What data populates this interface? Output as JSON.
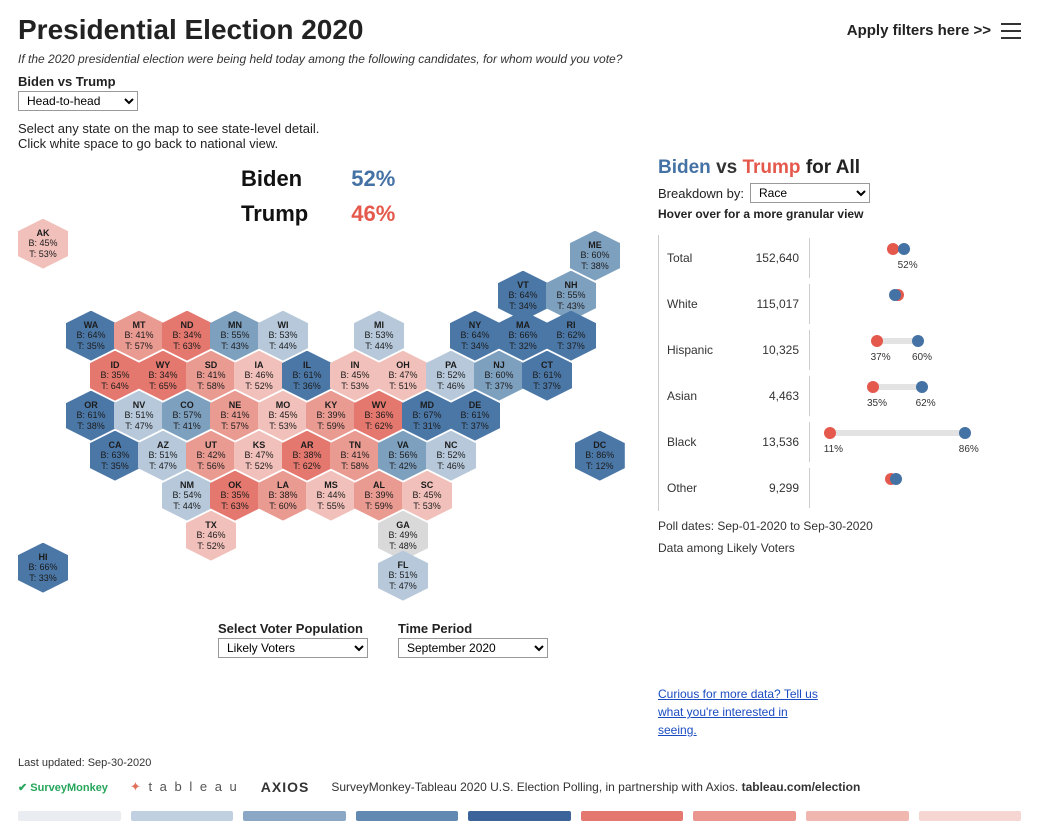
{
  "header": {
    "title": "Presidential Election 2020",
    "filters_link": "Apply filters here >>",
    "subtitle": "If the 2020 presidential election were being held today among the following candidates, for whom would you vote?",
    "matchup_label": "Biden vs Trump",
    "matchup_value": "Head-to-head",
    "instructions_l1": "Select any state on the map to see state-level detail.",
    "instructions_l2": "Click white space to go back to national view."
  },
  "headline": {
    "biden_name": "Biden",
    "biden_pct": "52%",
    "trump_name": "Trump",
    "trump_pct": "46%",
    "biden_color": "#4472a4",
    "trump_color": "#e4594c"
  },
  "hex_colors": {
    "b_high": "#4b77a6",
    "b_mid": "#7ea0bf",
    "b_low": "#b6c8da",
    "neutral": "#d9d9d9",
    "t_low": "#f1c0ba",
    "t_mid": "#e99a91",
    "t_high": "#e4776e"
  },
  "states": [
    {
      "id": "AK",
      "b": 45,
      "t": 53,
      "col": 0,
      "row": 0.2,
      "shade": "t_low"
    },
    {
      "id": "HI",
      "b": 66,
      "t": 33,
      "col": 0,
      "row": 8.3,
      "shade": "b_high"
    },
    {
      "id": "ME",
      "b": 60,
      "t": 38,
      "col": 11.5,
      "row": 0.5,
      "shade": "b_mid"
    },
    {
      "id": "VT",
      "b": 64,
      "t": 34,
      "col": 10,
      "row": 1.5,
      "shade": "b_high"
    },
    {
      "id": "NH",
      "b": 55,
      "t": 43,
      "col": 11,
      "row": 1.5,
      "shade": "b_mid"
    },
    {
      "id": "WA",
      "b": 64,
      "t": 35,
      "col": 1,
      "row": 2.5,
      "shade": "b_high"
    },
    {
      "id": "MT",
      "b": 41,
      "t": 57,
      "col": 2,
      "row": 2.5,
      "shade": "t_mid"
    },
    {
      "id": "ND",
      "b": 34,
      "t": 63,
      "col": 3,
      "row": 2.5,
      "shade": "t_high"
    },
    {
      "id": "MN",
      "b": 55,
      "t": 43,
      "col": 4,
      "row": 2.5,
      "shade": "b_mid"
    },
    {
      "id": "WI",
      "b": 53,
      "t": 44,
      "col": 5,
      "row": 2.5,
      "shade": "b_low"
    },
    {
      "id": "MI",
      "b": 53,
      "t": 44,
      "col": 7,
      "row": 2.5,
      "shade": "b_low"
    },
    {
      "id": "NY",
      "b": 64,
      "t": 34,
      "col": 9,
      "row": 2.5,
      "shade": "b_high"
    },
    {
      "id": "MA",
      "b": 66,
      "t": 32,
      "col": 10,
      "row": 2.5,
      "shade": "b_high"
    },
    {
      "id": "RI",
      "b": 62,
      "t": 37,
      "col": 11,
      "row": 2.5,
      "shade": "b_high"
    },
    {
      "id": "ID",
      "b": 35,
      "t": 64,
      "col": 1.5,
      "row": 3.5,
      "shade": "t_high"
    },
    {
      "id": "WY",
      "b": 34,
      "t": 65,
      "col": 2.5,
      "row": 3.5,
      "shade": "t_high"
    },
    {
      "id": "SD",
      "b": 41,
      "t": 58,
      "col": 3.5,
      "row": 3.5,
      "shade": "t_mid"
    },
    {
      "id": "IA",
      "b": 46,
      "t": 52,
      "col": 4.5,
      "row": 3.5,
      "shade": "t_low"
    },
    {
      "id": "IL",
      "b": 61,
      "t": 36,
      "col": 5.5,
      "row": 3.5,
      "shade": "b_high"
    },
    {
      "id": "IN",
      "b": 45,
      "t": 53,
      "col": 6.5,
      "row": 3.5,
      "shade": "t_low"
    },
    {
      "id": "OH",
      "b": 47,
      "t": 51,
      "col": 7.5,
      "row": 3.5,
      "shade": "t_low"
    },
    {
      "id": "PA",
      "b": 52,
      "t": 46,
      "col": 8.5,
      "row": 3.5,
      "shade": "b_low"
    },
    {
      "id": "NJ",
      "b": 60,
      "t": 37,
      "col": 9.5,
      "row": 3.5,
      "shade": "b_mid"
    },
    {
      "id": "CT",
      "b": 61,
      "t": 37,
      "col": 10.5,
      "row": 3.5,
      "shade": "b_high"
    },
    {
      "id": "OR",
      "b": 61,
      "t": 38,
      "col": 1,
      "row": 4.5,
      "shade": "b_high"
    },
    {
      "id": "NV",
      "b": 51,
      "t": 47,
      "col": 2,
      "row": 4.5,
      "shade": "b_low"
    },
    {
      "id": "CO",
      "b": 57,
      "t": 41,
      "col": 3,
      "row": 4.5,
      "shade": "b_mid"
    },
    {
      "id": "NE",
      "b": 41,
      "t": 57,
      "col": 4,
      "row": 4.5,
      "shade": "t_mid"
    },
    {
      "id": "MO",
      "b": 45,
      "t": 53,
      "col": 5,
      "row": 4.5,
      "shade": "t_low"
    },
    {
      "id": "KY",
      "b": 39,
      "t": 59,
      "col": 6,
      "row": 4.5,
      "shade": "t_mid"
    },
    {
      "id": "WV",
      "b": 36,
      "t": 62,
      "col": 7,
      "row": 4.5,
      "shade": "t_high"
    },
    {
      "id": "MD",
      "b": 67,
      "t": 31,
      "col": 8,
      "row": 4.5,
      "shade": "b_high"
    },
    {
      "id": "DE",
      "b": 61,
      "t": 37,
      "col": 9,
      "row": 4.5,
      "shade": "b_high"
    },
    {
      "id": "CA",
      "b": 63,
      "t": 35,
      "col": 1.5,
      "row": 5.5,
      "shade": "b_high"
    },
    {
      "id": "AZ",
      "b": 51,
      "t": 47,
      "col": 2.5,
      "row": 5.5,
      "shade": "b_low"
    },
    {
      "id": "UT",
      "b": 42,
      "t": 56,
      "col": 3.5,
      "row": 5.5,
      "shade": "t_mid"
    },
    {
      "id": "KS",
      "b": 47,
      "t": 52,
      "col": 4.5,
      "row": 5.5,
      "shade": "t_low"
    },
    {
      "id": "AR",
      "b": 38,
      "t": 62,
      "col": 5.5,
      "row": 5.5,
      "shade": "t_high"
    },
    {
      "id": "TN",
      "b": 41,
      "t": 58,
      "col": 6.5,
      "row": 5.5,
      "shade": "t_mid"
    },
    {
      "id": "VA",
      "b": 56,
      "t": 42,
      "col": 7.5,
      "row": 5.5,
      "shade": "b_mid"
    },
    {
      "id": "NC",
      "b": 52,
      "t": 46,
      "col": 8.5,
      "row": 5.5,
      "shade": "b_low"
    },
    {
      "id": "DC",
      "b": 86,
      "t": 12,
      "col": 11.6,
      "row": 5.5,
      "shade": "b_high"
    },
    {
      "id": "NM",
      "b": 54,
      "t": 44,
      "col": 3,
      "row": 6.5,
      "shade": "b_low"
    },
    {
      "id": "OK",
      "b": 35,
      "t": 63,
      "col": 4,
      "row": 6.5,
      "shade": "t_high"
    },
    {
      "id": "LA",
      "b": 38,
      "t": 60,
      "col": 5,
      "row": 6.5,
      "shade": "t_mid"
    },
    {
      "id": "MS",
      "b": 44,
      "t": 55,
      "col": 6,
      "row": 6.5,
      "shade": "t_low"
    },
    {
      "id": "AL",
      "b": 39,
      "t": 59,
      "col": 7,
      "row": 6.5,
      "shade": "t_mid"
    },
    {
      "id": "SC",
      "b": 45,
      "t": 53,
      "col": 8,
      "row": 6.5,
      "shade": "t_low"
    },
    {
      "id": "TX",
      "b": 46,
      "t": 52,
      "col": 3.5,
      "row": 7.5,
      "shade": "t_low"
    },
    {
      "id": "GA",
      "b": 49,
      "t": 48,
      "col": 7.5,
      "row": 7.5,
      "shade": "neutral"
    },
    {
      "id": "FL",
      "b": 51,
      "t": 47,
      "col": 7.5,
      "row": 8.5,
      "shade": "b_low"
    }
  ],
  "bottom_selects": {
    "pop_label": "Select Voter Population",
    "pop_value": "Likely Voters",
    "time_label": "Time Period",
    "time_value": "September 2020"
  },
  "panel": {
    "title_biden": "Biden",
    "title_vs": "vs",
    "title_trump": "Trump",
    "title_rest": "for All",
    "breakdown_label": "Breakdown by:",
    "breakdown_value": "Race",
    "hover_hint": "Hover over for a more granular view",
    "rows": [
      {
        "label": "Total",
        "count": "152,640",
        "t": 46,
        "b": 52,
        "show_labels": [
          "b"
        ]
      },
      {
        "label": "White",
        "count": "115,017",
        "t": 49,
        "b": 47,
        "show_labels": []
      },
      {
        "label": "Hispanic",
        "count": "10,325",
        "t": 37,
        "b": 60,
        "show_labels": [
          "t",
          "b"
        ]
      },
      {
        "label": "Asian",
        "count": "4,463",
        "t": 35,
        "b": 62,
        "show_labels": [
          "t",
          "b"
        ]
      },
      {
        "label": "Black",
        "count": "13,536",
        "t": 11,
        "b": 86,
        "show_labels": [
          "t",
          "b"
        ]
      },
      {
        "label": "Other",
        "count": "9,299",
        "t": 45,
        "b": 48,
        "show_labels": []
      }
    ],
    "poll_dates": "Poll dates: Sep-01-2020 to Sep-30-2020",
    "data_among": "Data among Likely Voters",
    "curious": "Curious for more data? Tell us what you're interested in seeing."
  },
  "footer": {
    "last_updated": "Last updated: Sep-30-2020",
    "caption": "SurveyMonkey-Tableau 2020 U.S. Election Polling, in partnership with Axios. ",
    "caption_bold": "tableau.com/election",
    "logos": {
      "sm": "SurveyMonkey",
      "tab": "t a b l e a u",
      "ax": "AXIOS"
    },
    "gradient": [
      "#e9edf2",
      "#c1d0e0",
      "#8aa8c5",
      "#6189b1",
      "#3c649a",
      "#e4776e",
      "#ea958d",
      "#f0b7b1",
      "#f6d6d2"
    ]
  }
}
